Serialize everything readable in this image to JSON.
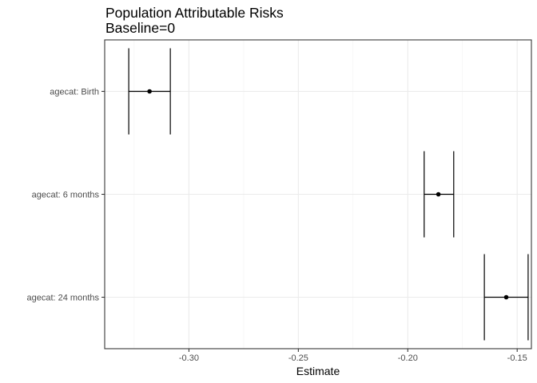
{
  "chart_data": {
    "type": "forest",
    "title": "Population Attributable Risks",
    "subtitle": "Baseline=0",
    "xlabel": "Estimate",
    "ylabel": "",
    "xlim": [
      -0.3385,
      -0.1435
    ],
    "x_ticks": [
      -0.3,
      -0.25,
      -0.2,
      -0.15
    ],
    "x_tick_labels": [
      "-0.30",
      "-0.25",
      "-0.20",
      "-0.15"
    ],
    "x_minor_ticks": [
      -0.325,
      -0.275,
      -0.225,
      -0.175
    ],
    "grid": true,
    "categories": [
      "agecat: Birth",
      "agecat: 6 months",
      "agecat: 24 months"
    ],
    "estimates": [
      {
        "label": "agecat: Birth",
        "estimate": -0.318,
        "ci_lower": -0.3275,
        "ci_upper": -0.3085
      },
      {
        "label": "agecat: 6 months",
        "estimate": -0.186,
        "ci_lower": -0.1925,
        "ci_upper": -0.179
      },
      {
        "label": "agecat: 24 months",
        "estimate": -0.155,
        "ci_lower": -0.165,
        "ci_upper": -0.145
      }
    ]
  }
}
